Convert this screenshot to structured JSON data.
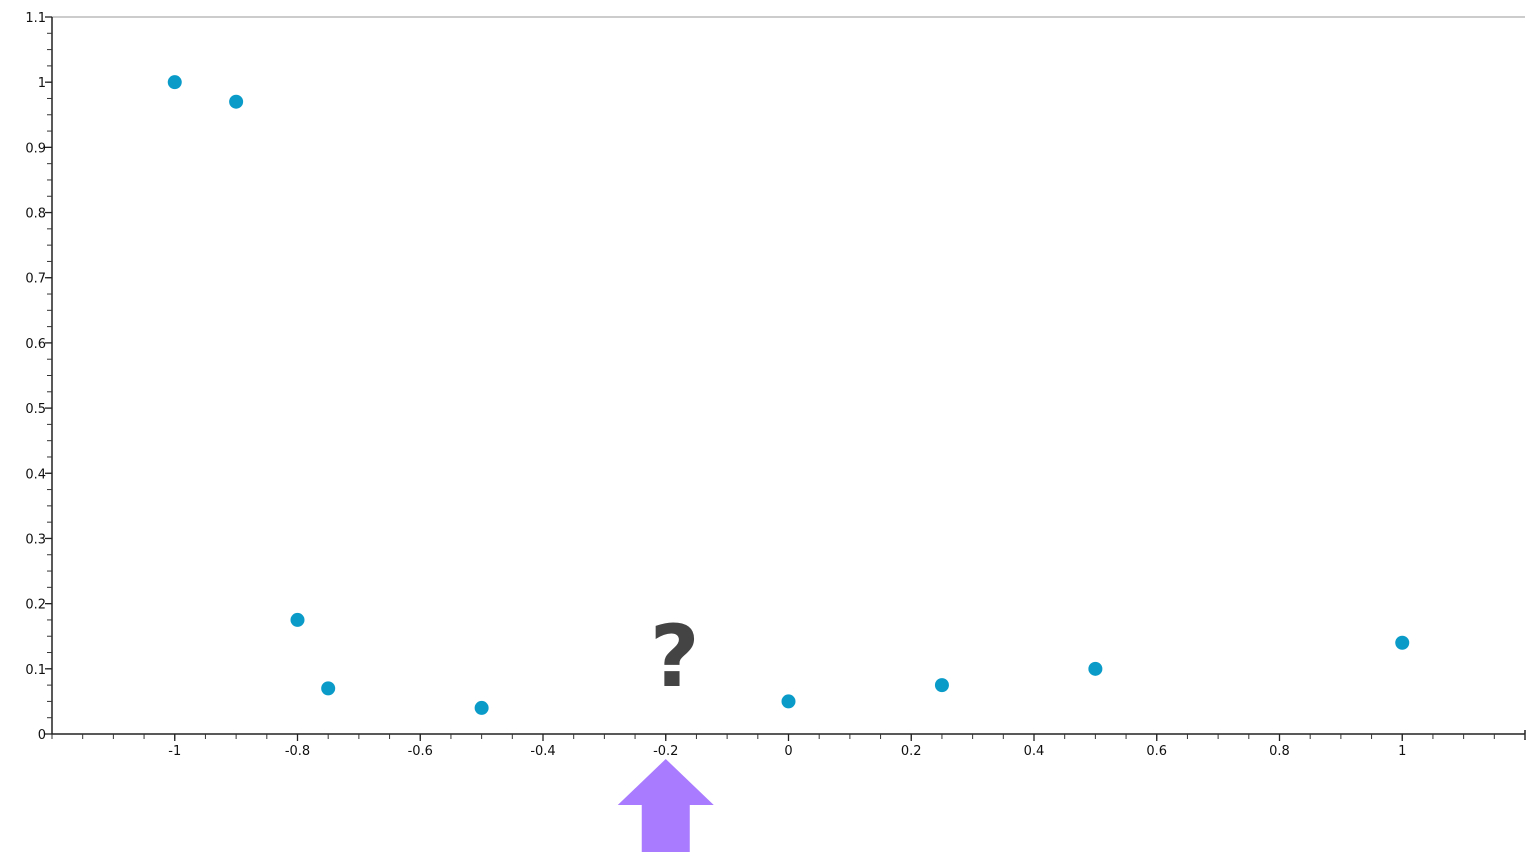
{
  "chart_data": {
    "type": "scatter",
    "title": "",
    "xlabel": "",
    "ylabel": "",
    "xlim": [
      -1.2,
      1.2
    ],
    "ylim": [
      0,
      1.1
    ],
    "x_ticks": [
      -1,
      -0.8,
      -0.6,
      -0.4,
      -0.2,
      0,
      0.2,
      0.4,
      0.6,
      0.8,
      1
    ],
    "x_tick_labels": [
      "-1",
      "-0.8",
      "-0.6",
      "-0.4",
      "-0.2",
      "0",
      "0.2",
      "0.4",
      "0.6",
      "0.8",
      "1"
    ],
    "x_minor_step": 0.05,
    "y_ticks": [
      0,
      0.1,
      0.2,
      0.3,
      0.4,
      0.5,
      0.6,
      0.7,
      0.8,
      0.9,
      1,
      1.1
    ],
    "y_tick_labels": [
      "0",
      "0.1",
      "0.2",
      "0.3",
      "0.4",
      "0.5",
      "0.6",
      "0.7",
      "0.8",
      "0.9",
      "1",
      "1.1"
    ],
    "y_minor_step": 0.025,
    "grid": false,
    "series": [
      {
        "color": "#0a9bc9",
        "points": [
          {
            "x": -1,
            "y": 1.0
          },
          {
            "x": -0.9,
            "y": 0.97
          },
          {
            "x": -0.8,
            "y": 0.175
          },
          {
            "x": -0.75,
            "y": 0.07
          },
          {
            "x": -0.5,
            "y": 0.04
          },
          {
            "x": 0,
            "y": 0.05
          },
          {
            "x": 0.25,
            "y": 0.075
          },
          {
            "x": 0.5,
            "y": 0.1
          },
          {
            "x": 1,
            "y": 0.14
          }
        ]
      }
    ],
    "annotations": [
      {
        "text": "?",
        "x": -0.2,
        "color": "#444444"
      },
      {
        "type": "arrow-up",
        "x": -0.2,
        "color": "#a97bff"
      }
    ]
  }
}
